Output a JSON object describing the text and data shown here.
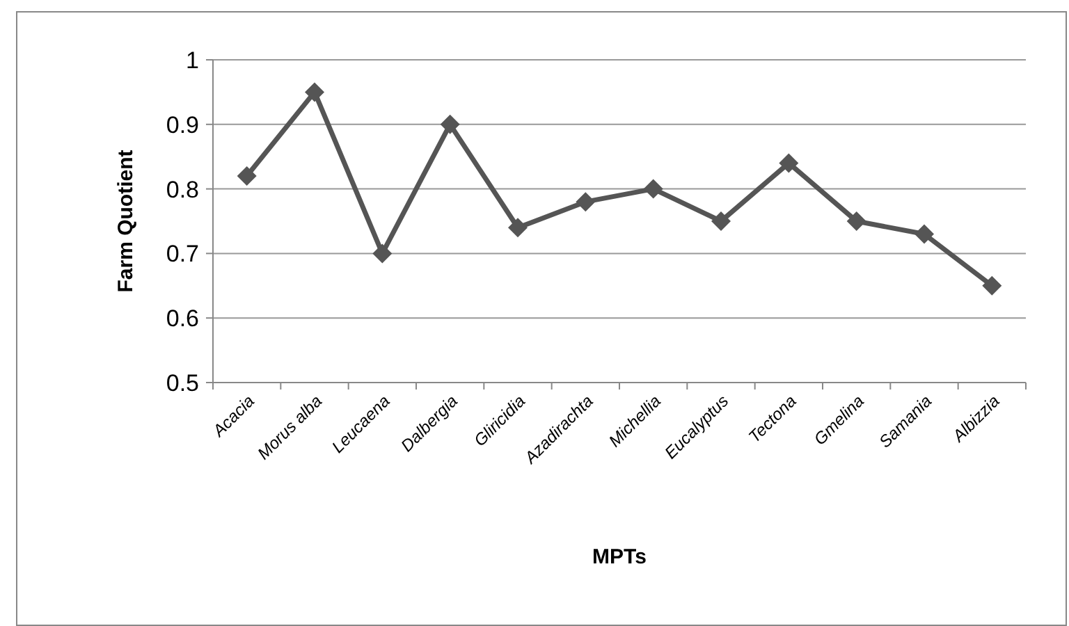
{
  "chart_data": {
    "type": "line",
    "xlabel": "MPTs",
    "ylabel": "Farm Quotient",
    "categories": [
      "Acacia",
      "Morus alba",
      "Leucaena",
      "Dalbergia",
      "Gliricidia",
      "Azadirachta",
      "Michellia",
      "Eucalyptus",
      "Tectona",
      "Gmelina",
      "Samania",
      "Albizzia"
    ],
    "series": [
      {
        "color": "#555555",
        "values": [
          0.82,
          0.95,
          0.7,
          0.9,
          0.74,
          0.78,
          0.8,
          0.75,
          0.84,
          0.75,
          0.73,
          0.65
        ]
      }
    ],
    "ylim": [
      0.5,
      1
    ],
    "yticks": [
      0.5,
      0.6,
      0.7,
      0.8,
      0.9,
      1
    ],
    "grid": "y",
    "marker": "diamond"
  }
}
